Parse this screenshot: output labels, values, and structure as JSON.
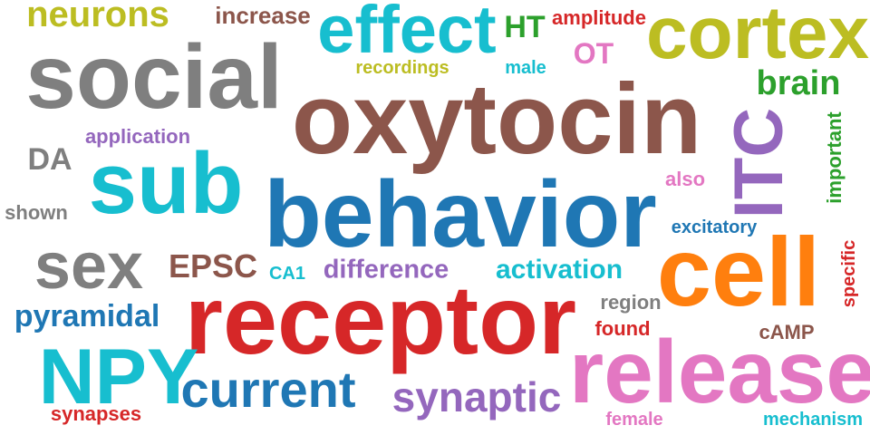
{
  "colors": {
    "brown": "#8c564b",
    "gray": "#7f7f7f",
    "blue": "#1f77b4",
    "cyan": "#17becf",
    "red": "#d62728",
    "orange": "#ff7f0e",
    "olive": "#bcbd22",
    "purple": "#9467bd",
    "pink": "#e377c2",
    "green": "#2ca02c"
  },
  "words": {
    "oxytocin": "oxytocin",
    "behavior": "behavior",
    "receptor": "receptor",
    "social": "social",
    "sub": "sub",
    "cell": "cell",
    "release": "release",
    "cortex": "cortex",
    "effect": "effect",
    "itc": "ITC",
    "npy": "NPY",
    "sex": "sex",
    "current": "current",
    "synaptic": "synaptic",
    "neurons": "neurons",
    "pyramidal": "pyramidal",
    "epsc": "EPSC",
    "activation": "activation",
    "difference": "difference",
    "brain": "brain",
    "increase": "increase",
    "amplitude": "amplitude",
    "ht": "HT",
    "ot": "OT",
    "recordings": "recordings",
    "male": "male",
    "application": "application",
    "da": "DA",
    "shown": "shown",
    "also": "also",
    "important": "important",
    "excitatory": "excitatory",
    "ca1": "CA1",
    "region": "region",
    "found": "found",
    "camp": "cAMP",
    "specific": "specific",
    "synapses": "synapses",
    "female": "female",
    "mechanism": "mechanism"
  }
}
